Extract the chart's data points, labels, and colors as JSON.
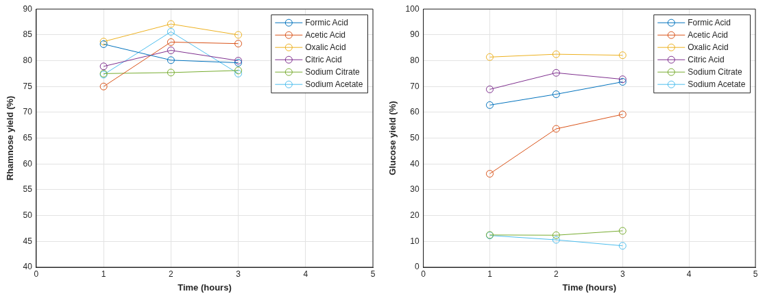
{
  "chart_data": [
    {
      "type": "line",
      "xlabel": "Time (hours)",
      "ylabel": "Rhamnose yield (%)",
      "x": [
        1,
        2,
        3
      ],
      "xlim": [
        0,
        5
      ],
      "xticks": [
        0,
        1,
        2,
        3,
        4,
        5
      ],
      "ylim": [
        40,
        90
      ],
      "yticks": [
        40,
        45,
        50,
        55,
        60,
        65,
        70,
        75,
        80,
        85,
        90
      ],
      "grid": true,
      "legend": "top right",
      "marker": "circle",
      "series": [
        {
          "name": "Formic Acid",
          "color": "#0072bd",
          "values": [
            83.2,
            80.1,
            79.6
          ]
        },
        {
          "name": "Acetic Acid",
          "color": "#d95319",
          "values": [
            75.0,
            83.6,
            83.3
          ]
        },
        {
          "name": "Oxalic Acid",
          "color": "#edb120",
          "values": [
            83.7,
            87.1,
            85.0
          ]
        },
        {
          "name": "Citric Acid",
          "color": "#7e2f8e",
          "values": [
            78.9,
            82.0,
            80.0
          ]
        },
        {
          "name": "Sodium Citrate",
          "color": "#77ac30",
          "values": [
            77.5,
            77.7,
            78.1
          ]
        },
        {
          "name": "Sodium Acetate",
          "color": "#4dbeee",
          "values": [
            77.3,
            85.6,
            77.5
          ]
        }
      ]
    },
    {
      "type": "line",
      "xlabel": "Time (hours)",
      "ylabel": "Glucose yield (%)",
      "x": [
        1,
        2,
        3
      ],
      "xlim": [
        0,
        5
      ],
      "xticks": [
        0,
        1,
        2,
        3,
        4,
        5
      ],
      "ylim": [
        0,
        100
      ],
      "yticks": [
        0,
        10,
        20,
        30,
        40,
        50,
        60,
        70,
        80,
        90,
        100
      ],
      "grid": true,
      "legend": "top right",
      "marker": "circle",
      "series": [
        {
          "name": "Formic Acid",
          "color": "#0072bd",
          "values": [
            62.8,
            67.0,
            71.8
          ]
        },
        {
          "name": "Acetic Acid",
          "color": "#d95319",
          "values": [
            36.2,
            53.6,
            59.2
          ]
        },
        {
          "name": "Oxalic Acid",
          "color": "#edb120",
          "values": [
            81.4,
            82.5,
            82.1
          ]
        },
        {
          "name": "Citric Acid",
          "color": "#7e2f8e",
          "values": [
            68.9,
            75.3,
            72.8
          ]
        },
        {
          "name": "Sodium Citrate",
          "color": "#77ac30",
          "values": [
            12.5,
            12.4,
            14.1
          ]
        },
        {
          "name": "Sodium Acetate",
          "color": "#4dbeee",
          "values": [
            12.3,
            10.6,
            8.3
          ]
        }
      ]
    }
  ]
}
